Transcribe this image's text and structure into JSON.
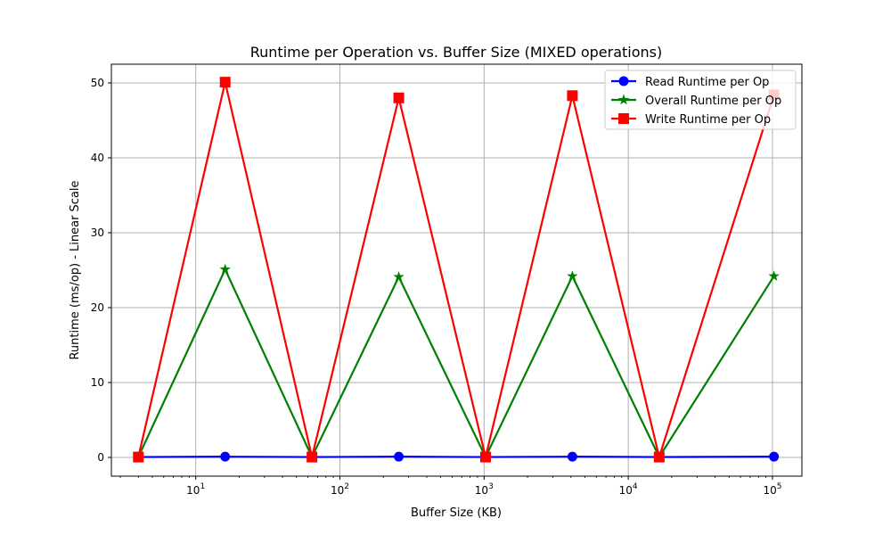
{
  "chart_data": {
    "type": "line",
    "title": "Runtime per Operation vs. Buffer Size (MIXED operations)",
    "xlabel": "Buffer Size (KB)",
    "ylabel": "Runtime (ms/op) - Linear Scale",
    "x_scale": "log",
    "xlim": [
      2.6,
      160000
    ],
    "ylim": [
      -2.5,
      52.5
    ],
    "x": [
      4,
      16,
      64,
      256,
      1024,
      4096,
      16384,
      102400
    ],
    "x_ticks": [
      {
        "value": 10,
        "base": "10",
        "exp": "1"
      },
      {
        "value": 100,
        "base": "10",
        "exp": "2"
      },
      {
        "value": 1000,
        "base": "10",
        "exp": "3"
      },
      {
        "value": 10000,
        "base": "10",
        "exp": "4"
      },
      {
        "value": 100000,
        "base": "10",
        "exp": "5"
      }
    ],
    "y_ticks": [
      "0",
      "10",
      "20",
      "30",
      "40",
      "50"
    ],
    "grid": true,
    "legend_position": "top-right",
    "series": [
      {
        "name": "Read Runtime per Op",
        "color": "#0000ff",
        "marker": "circle",
        "values": [
          0.05,
          0.1,
          0.05,
          0.1,
          0.05,
          0.1,
          0.05,
          0.1
        ]
      },
      {
        "name": "Overall Runtime per Op",
        "color": "#008000",
        "marker": "star",
        "values": [
          0.05,
          25.1,
          0.05,
          24.1,
          0.05,
          24.2,
          0.05,
          24.2
        ]
      },
      {
        "name": "Write Runtime per Op",
        "color": "#ff0000",
        "marker": "square",
        "values": [
          0.05,
          50.1,
          0.05,
          48.0,
          0.05,
          48.3,
          0.05,
          48.4
        ]
      }
    ]
  }
}
